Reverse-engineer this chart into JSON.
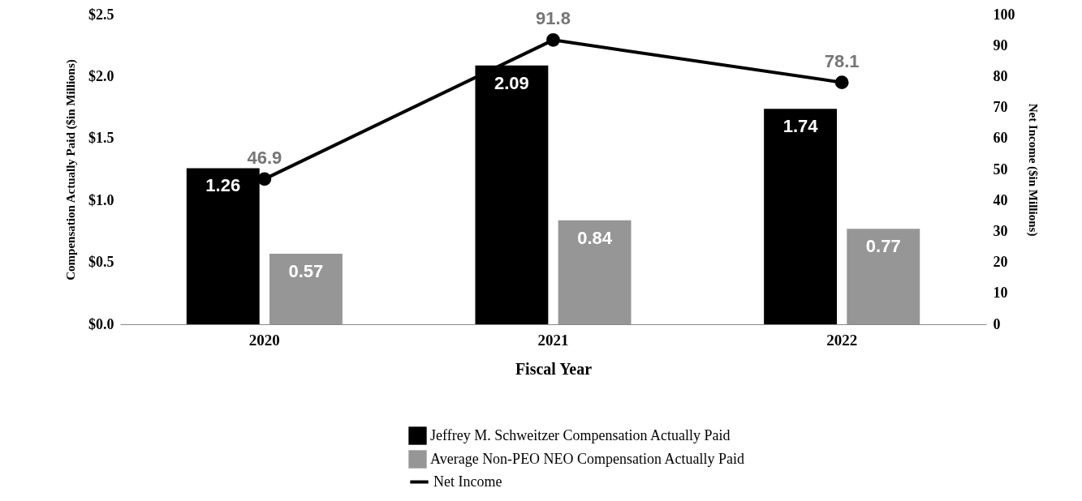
{
  "chart_data": {
    "type": "bar",
    "xlabel": "Fiscal Year",
    "ylabel": "Compensation Actually Paid ($in Millions)",
    "y2label": "Net Income ($in Millions)",
    "categories": [
      "2020",
      "2021",
      "2022"
    ],
    "series": [
      {
        "name": "Jeffrey M. Schweitzer Compensation Actually Paid",
        "type": "bar",
        "color": "#000000",
        "values": [
          1.26,
          2.09,
          1.74
        ]
      },
      {
        "name": "Average Non-PEO NEO Compensation Actually Paid",
        "type": "bar",
        "color": "#969696",
        "values": [
          0.57,
          0.84,
          0.77
        ]
      },
      {
        "name": "Net Income",
        "type": "line",
        "axis": "y2",
        "color": "#000000",
        "values": [
          46.9,
          91.8,
          78.1
        ]
      }
    ],
    "ylim": [
      0,
      2.5
    ],
    "yticks": [
      {
        "value": 0,
        "label": "$0.0"
      },
      {
        "value": 0.5,
        "label": "$0.5"
      },
      {
        "value": 1,
        "label": "$1.0"
      },
      {
        "value": 1.5,
        "label": "$1.5"
      },
      {
        "value": 2,
        "label": "$2.0"
      },
      {
        "value": 2.5,
        "label": "$2.5"
      }
    ],
    "y2lim": [
      0,
      100
    ],
    "y2ticks": [
      0,
      10,
      20,
      30,
      40,
      50,
      60,
      70,
      80,
      90,
      100
    ],
    "data_labels": true,
    "grid": false,
    "legend": "bottom",
    "marker": "circle",
    "line_style": "solid"
  }
}
